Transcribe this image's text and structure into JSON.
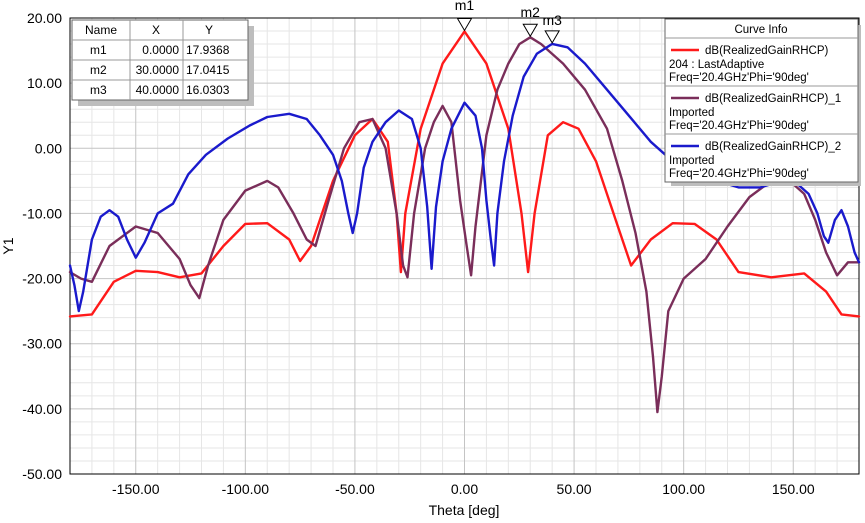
{
  "chart_data": {
    "type": "line",
    "xlabel": "Theta [deg]",
    "ylabel": "Y1",
    "xlim": [
      -180,
      180
    ],
    "ylim": [
      -50,
      20
    ],
    "x_ticks": [
      -150,
      -100,
      -50,
      0,
      50,
      100,
      150
    ],
    "x_tick_labels": [
      "-150.00",
      "-100.00",
      "-50.00",
      "0.00",
      "50.00",
      "100.00",
      "150.00"
    ],
    "y_ticks": [
      20,
      10,
      0,
      -10,
      -20,
      -30,
      -40,
      -50
    ],
    "y_tick_labels": [
      "20.00",
      "10.00",
      "0.00",
      "-10.00",
      "-20.00",
      "-30.00",
      "-40.00",
      "-50.00"
    ],
    "grid": true,
    "legend": {
      "placement": "top-right",
      "title": "Curve Info",
      "entries": [
        {
          "color": "#ff1a1a",
          "lines": [
            "dB(RealizedGainRHCP)",
            "204 : LastAdaptive",
            "Freq='20.4GHz'Phi='90deg'"
          ]
        },
        {
          "color": "#7a2e5a",
          "lines": [
            "dB(RealizedGainRHCP)_1",
            "Imported",
            "Freq='20.4GHz'Phi='90deg'"
          ]
        },
        {
          "color": "#1a1acc",
          "lines": [
            "dB(RealizedGainRHCP)_2",
            "Imported",
            "Freq='20.4GHz'Phi='90deg'"
          ]
        }
      ]
    },
    "marker_table": {
      "headers": [
        "Name",
        "X",
        "Y"
      ],
      "rows": [
        [
          "m1",
          "0.0000",
          "17.9368"
        ],
        [
          "m2",
          "30.0000",
          "17.0415"
        ],
        [
          "m3",
          "40.0000",
          "16.0303"
        ]
      ]
    },
    "markers": [
      {
        "name": "m1",
        "x": 0,
        "y": 17.9368
      },
      {
        "name": "m2",
        "x": 30,
        "y": 17.0415
      },
      {
        "name": "m3",
        "x": 40,
        "y": 16.0303
      }
    ],
    "series": [
      {
        "color": "#ff1a1a",
        "points": [
          [
            -180,
            -25.8
          ],
          [
            -170,
            -25.5
          ],
          [
            -160,
            -20.5
          ],
          [
            -150,
            -18.8
          ],
          [
            -140,
            -19
          ],
          [
            -130,
            -19.8
          ],
          [
            -120,
            -19.2
          ],
          [
            -110,
            -15
          ],
          [
            -100,
            -11.6
          ],
          [
            -90,
            -11.5
          ],
          [
            -80,
            -14
          ],
          [
            -75,
            -17.3
          ],
          [
            -70,
            -15
          ],
          [
            -60,
            -5
          ],
          [
            -50,
            2
          ],
          [
            -42,
            4.5
          ],
          [
            -35,
            1
          ],
          [
            -31,
            -10
          ],
          [
            -29,
            -19
          ],
          [
            -27,
            -10
          ],
          [
            -20,
            3
          ],
          [
            -10,
            13
          ],
          [
            0,
            17.94
          ],
          [
            10,
            13
          ],
          [
            20,
            3
          ],
          [
            26,
            -10
          ],
          [
            29,
            -19
          ],
          [
            32,
            -10
          ],
          [
            38,
            2
          ],
          [
            45,
            4
          ],
          [
            52,
            3
          ],
          [
            60,
            -2
          ],
          [
            70,
            -12
          ],
          [
            76,
            -18
          ],
          [
            85,
            -14
          ],
          [
            95,
            -11.5
          ],
          [
            105,
            -11.6
          ],
          [
            115,
            -14
          ],
          [
            125,
            -19
          ],
          [
            140,
            -19.8
          ],
          [
            155,
            -19.2
          ],
          [
            165,
            -22
          ],
          [
            172,
            -25.5
          ],
          [
            180,
            -25.8
          ]
        ]
      },
      {
        "color": "#7a2e5a",
        "points": [
          [
            -180,
            -19
          ],
          [
            -175,
            -20
          ],
          [
            -170,
            -20.5
          ],
          [
            -162,
            -15
          ],
          [
            -150,
            -12
          ],
          [
            -140,
            -13
          ],
          [
            -130,
            -17
          ],
          [
            -125,
            -21
          ],
          [
            -121,
            -23
          ],
          [
            -117,
            -18
          ],
          [
            -110,
            -11
          ],
          [
            -100,
            -6.5
          ],
          [
            -90,
            -5
          ],
          [
            -85,
            -6
          ],
          [
            -78,
            -10
          ],
          [
            -72,
            -14
          ],
          [
            -68,
            -15
          ],
          [
            -62,
            -8
          ],
          [
            -55,
            0
          ],
          [
            -48,
            4
          ],
          [
            -42,
            4.5
          ],
          [
            -36,
            0
          ],
          [
            -31,
            -10
          ],
          [
            -28,
            -18
          ],
          [
            -26,
            -19.8
          ],
          [
            -23,
            -10
          ],
          [
            -18,
            0
          ],
          [
            -14,
            4
          ],
          [
            -10,
            6.5
          ],
          [
            -6,
            4
          ],
          [
            -2,
            -8
          ],
          [
            1,
            -15
          ],
          [
            3,
            -19.5
          ],
          [
            5,
            -12
          ],
          [
            10,
            2
          ],
          [
            15,
            9
          ],
          [
            20,
            13
          ],
          [
            25,
            16
          ],
          [
            30,
            17.04
          ],
          [
            35,
            16
          ],
          [
            45,
            13
          ],
          [
            55,
            9
          ],
          [
            65,
            3
          ],
          [
            72,
            -5
          ],
          [
            78,
            -13
          ],
          [
            83,
            -22
          ],
          [
            86,
            -32
          ],
          [
            88,
            -40.5
          ],
          [
            90,
            -35
          ],
          [
            93,
            -25
          ],
          [
            100,
            -20
          ],
          [
            110,
            -17
          ],
          [
            120,
            -12
          ],
          [
            130,
            -7.5
          ],
          [
            140,
            -5
          ],
          [
            150,
            -5.5
          ],
          [
            155,
            -7
          ],
          [
            160,
            -11
          ],
          [
            165,
            -16
          ],
          [
            170,
            -19.5
          ],
          [
            175,
            -17.5
          ],
          [
            180,
            -17.5
          ]
        ]
      },
      {
        "color": "#1a1acc",
        "points": [
          [
            -180,
            -18
          ],
          [
            -178,
            -21
          ],
          [
            -176,
            -25
          ],
          [
            -174,
            -22
          ],
          [
            -170,
            -14
          ],
          [
            -166,
            -10.5
          ],
          [
            -162,
            -9.5
          ],
          [
            -158,
            -10.5
          ],
          [
            -154,
            -14
          ],
          [
            -150,
            -16.8
          ],
          [
            -146,
            -14.5
          ],
          [
            -140,
            -10
          ],
          [
            -133,
            -8.5
          ],
          [
            -126,
            -4
          ],
          [
            -118,
            -1
          ],
          [
            -108,
            1.5
          ],
          [
            -98,
            3.5
          ],
          [
            -90,
            4.8
          ],
          [
            -80,
            5.3
          ],
          [
            -72,
            4.5
          ],
          [
            -66,
            2
          ],
          [
            -60,
            -1
          ],
          [
            -56,
            -5
          ],
          [
            -53,
            -10
          ],
          [
            -51,
            -13
          ],
          [
            -49,
            -10
          ],
          [
            -46,
            -3
          ],
          [
            -42,
            1
          ],
          [
            -36,
            4
          ],
          [
            -30,
            5.8
          ],
          [
            -24,
            4.5
          ],
          [
            -20,
            0
          ],
          [
            -17,
            -9
          ],
          [
            -15,
            -18.5
          ],
          [
            -13,
            -9
          ],
          [
            -10,
            -2
          ],
          [
            -6,
            3
          ],
          [
            0,
            7
          ],
          [
            5,
            5
          ],
          [
            8,
            0
          ],
          [
            10,
            -8
          ],
          [
            12,
            -14
          ],
          [
            13.5,
            -18
          ],
          [
            15,
            -10
          ],
          [
            18,
            -2
          ],
          [
            22,
            5
          ],
          [
            27,
            11
          ],
          [
            33,
            14.5
          ],
          [
            40,
            16.03
          ],
          [
            47,
            15.5
          ],
          [
            55,
            13
          ],
          [
            65,
            9
          ],
          [
            75,
            5
          ],
          [
            85,
            1
          ],
          [
            95,
            -2
          ],
          [
            105,
            -4
          ],
          [
            115,
            -5
          ],
          [
            125,
            -6
          ],
          [
            135,
            -6
          ],
          [
            145,
            -5
          ],
          [
            152,
            -5.5
          ],
          [
            157,
            -7
          ],
          [
            161,
            -10
          ],
          [
            164,
            -13.5
          ],
          [
            166,
            -14.5
          ],
          [
            169,
            -11
          ],
          [
            172,
            -9.5
          ],
          [
            175,
            -12
          ],
          [
            178,
            -16
          ],
          [
            180,
            -17.5
          ]
        ]
      }
    ]
  }
}
